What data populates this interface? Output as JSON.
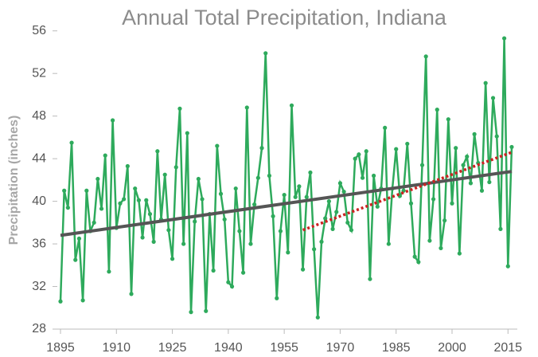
{
  "chart_data": {
    "type": "line",
    "title": "Annual Total Precipitation, Indiana",
    "y_label": "Precipitation (inches)",
    "x": [
      1895,
      1896,
      1897,
      1898,
      1899,
      1900,
      1901,
      1902,
      1903,
      1904,
      1905,
      1906,
      1907,
      1908,
      1909,
      1910,
      1911,
      1912,
      1913,
      1914,
      1915,
      1916,
      1917,
      1918,
      1919,
      1920,
      1921,
      1922,
      1923,
      1924,
      1925,
      1926,
      1927,
      1928,
      1929,
      1930,
      1931,
      1932,
      1933,
      1934,
      1935,
      1936,
      1937,
      1938,
      1939,
      1940,
      1941,
      1942,
      1943,
      1944,
      1945,
      1946,
      1947,
      1948,
      1949,
      1950,
      1951,
      1952,
      1953,
      1954,
      1955,
      1956,
      1957,
      1958,
      1959,
      1960,
      1961,
      1962,
      1963,
      1964,
      1965,
      1966,
      1967,
      1968,
      1969,
      1970,
      1971,
      1972,
      1973,
      1974,
      1975,
      1976,
      1977,
      1978,
      1979,
      1980,
      1981,
      1982,
      1983,
      1984,
      1985,
      1986,
      1987,
      1988,
      1989,
      1990,
      1991,
      1992,
      1993,
      1994,
      1995,
      1996,
      1997,
      1998,
      1999,
      2000,
      2001,
      2002,
      2003,
      2004,
      2005,
      2006,
      2007,
      2008,
      2009,
      2010,
      2011,
      2012,
      2013,
      2014,
      2015,
      2016
    ],
    "series": [
      {
        "color": "#2eaa5c",
        "values": [
          30.6,
          41.0,
          39.4,
          45.5,
          34.5,
          36.5,
          30.7,
          41.0,
          37.2,
          38.0,
          42.1,
          39.3,
          44.3,
          33.4,
          47.6,
          37.5,
          39.8,
          40.2,
          43.3,
          31.3,
          41.2,
          40.1,
          36.6,
          40.1,
          38.8,
          36.2,
          44.7,
          38.3,
          42.5,
          37.3,
          34.6,
          43.2,
          48.7,
          36.0,
          46.4,
          29.6,
          38.1,
          42.1,
          40.2,
          29.7,
          38.8,
          33.5,
          45.2,
          40.7,
          38.3,
          32.4,
          32.0,
          41.2,
          37.2,
          33.3,
          48.8,
          36.0,
          39.7,
          42.2,
          45.0,
          53.9,
          42.4,
          38.6,
          30.9,
          37.2,
          40.6,
          35.2,
          49.0,
          40.4,
          41.4,
          33.6,
          40.4,
          42.7,
          35.5,
          29.1,
          36.2,
          38.4,
          40.0,
          37.4,
          39.0,
          41.7,
          40.9,
          38.0,
          37.3,
          44.0,
          44.4,
          42.2,
          44.7,
          32.7,
          42.4,
          39.5,
          41.2,
          46.9,
          36.0,
          41.2,
          44.9,
          40.5,
          41.0,
          45.4,
          39.8,
          34.8,
          34.3,
          43.4,
          53.6,
          36.3,
          40.2,
          48.6,
          35.6,
          38.2,
          47.7,
          39.8,
          45.0,
          35.1,
          43.4,
          44.2,
          41.7,
          46.3,
          43.6,
          41.0,
          51.1,
          41.8,
          49.7,
          46.1,
          37.4,
          55.3,
          33.9,
          45.1
        ]
      }
    ],
    "trend_lines": [
      {
        "color": "#555555",
        "x": [
          1895,
          2016
        ],
        "values": [
          36.8,
          42.8
        ],
        "dotted": false
      },
      {
        "color": "#cc2222",
        "x": [
          1960,
          2016
        ],
        "values": [
          37.3,
          44.6
        ],
        "dotted": true
      }
    ],
    "xlim": [
      1895,
      2017.5
    ],
    "ylim": [
      28,
      58
    ],
    "xticks": [
      1895,
      1910,
      1925,
      1940,
      1955,
      1970,
      1985,
      2000,
      2015
    ],
    "yticks": [
      28,
      32,
      36,
      40,
      44,
      48,
      52,
      56
    ]
  }
}
